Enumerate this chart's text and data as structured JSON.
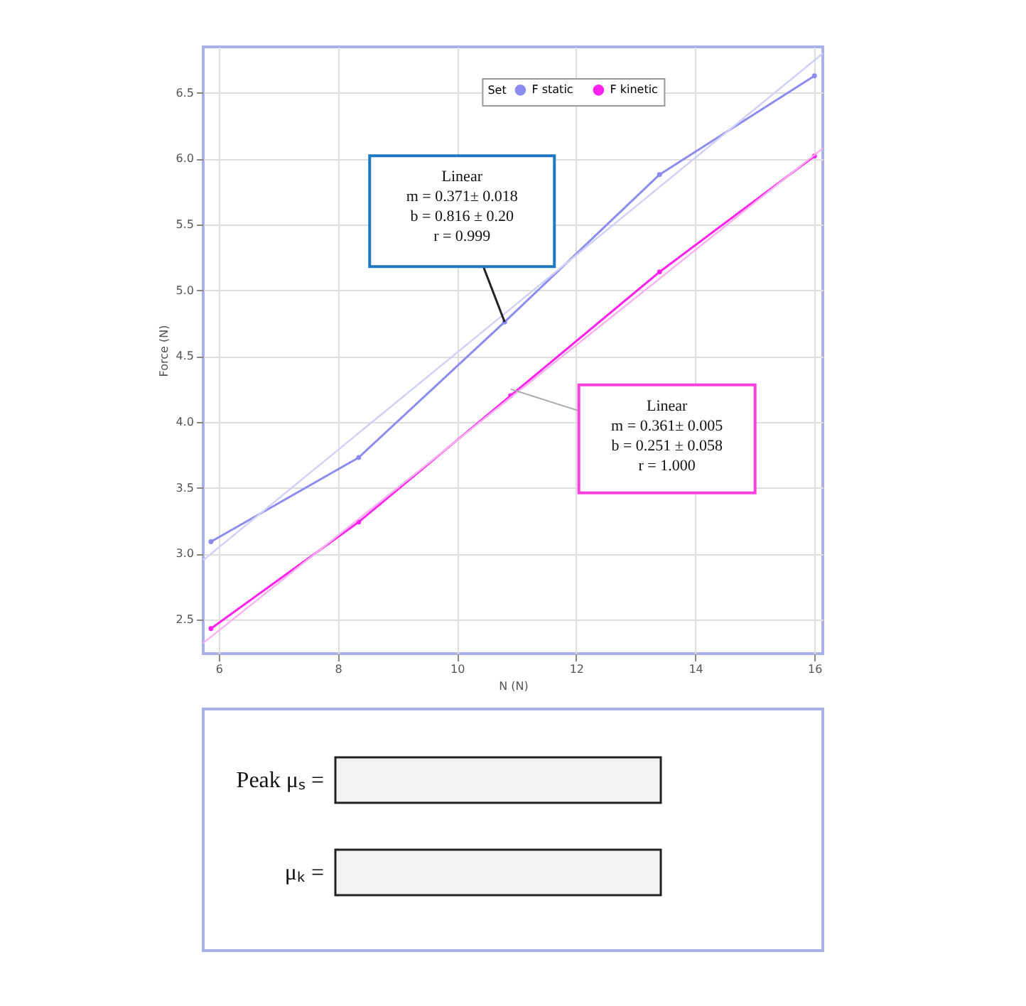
{
  "chart_data": {
    "type": "line",
    "xlabel": "N (N)",
    "ylabel": "Force (N)",
    "legend_title": "Set",
    "legend": "top right",
    "grid": true,
    "marker": "circle",
    "xlim": [
      5.74,
      16.14
    ],
    "xticks": [
      6,
      8,
      10,
      12,
      14,
      16
    ],
    "ylim": [
      2.24,
      6.85
    ],
    "yticks": [
      2.5,
      {
        "value": 3,
        "label": "3.0"
      },
      3.5,
      {
        "value": 4,
        "label": "4.0"
      },
      4.5,
      {
        "value": 5,
        "label": "5.0"
      },
      5.5,
      {
        "value": 6,
        "label": "6.0"
      },
      6.5
    ],
    "series": [
      {
        "name": "F static",
        "color": "#8c8cf0",
        "x": [
          5.87,
          8.35,
          10.8,
          13.4,
          16.0
        ],
        "values": [
          3.09,
          3.73,
          4.76,
          5.88,
          6.63
        ]
      },
      {
        "name": "F kinetic",
        "color": "#ff22ee",
        "x": [
          5.87,
          8.35,
          10.9,
          13.4,
          16.0
        ],
        "values": [
          2.43,
          3.24,
          4.2,
          5.14,
          6.02
        ]
      },
      {
        "type": "line",
        "marker": "none",
        "color": "#d0d0f8",
        "x": [
          5.74,
          16.14
        ],
        "values": [
          2.95,
          6.8
        ]
      },
      {
        "type": "line",
        "marker": "none",
        "color": "#f8b0f0",
        "x": [
          5.74,
          16.14
        ],
        "values": [
          2.32,
          6.08
        ]
      }
    ],
    "annotations": [
      {
        "text": "Linear\nm = 0.371± 0.018\nb = 0.816 ± 0.20\nr = 0.999",
        "x": 10.8,
        "y": 4.76
      },
      {
        "text": "Linear\nm = 0.361± 0.005\nb = 0.251 ± 0.058\nr = 1.000",
        "x": 10.9,
        "y": 4.25
      },
      "Peak μₛ =",
      "μₖ ="
    ]
  }
}
